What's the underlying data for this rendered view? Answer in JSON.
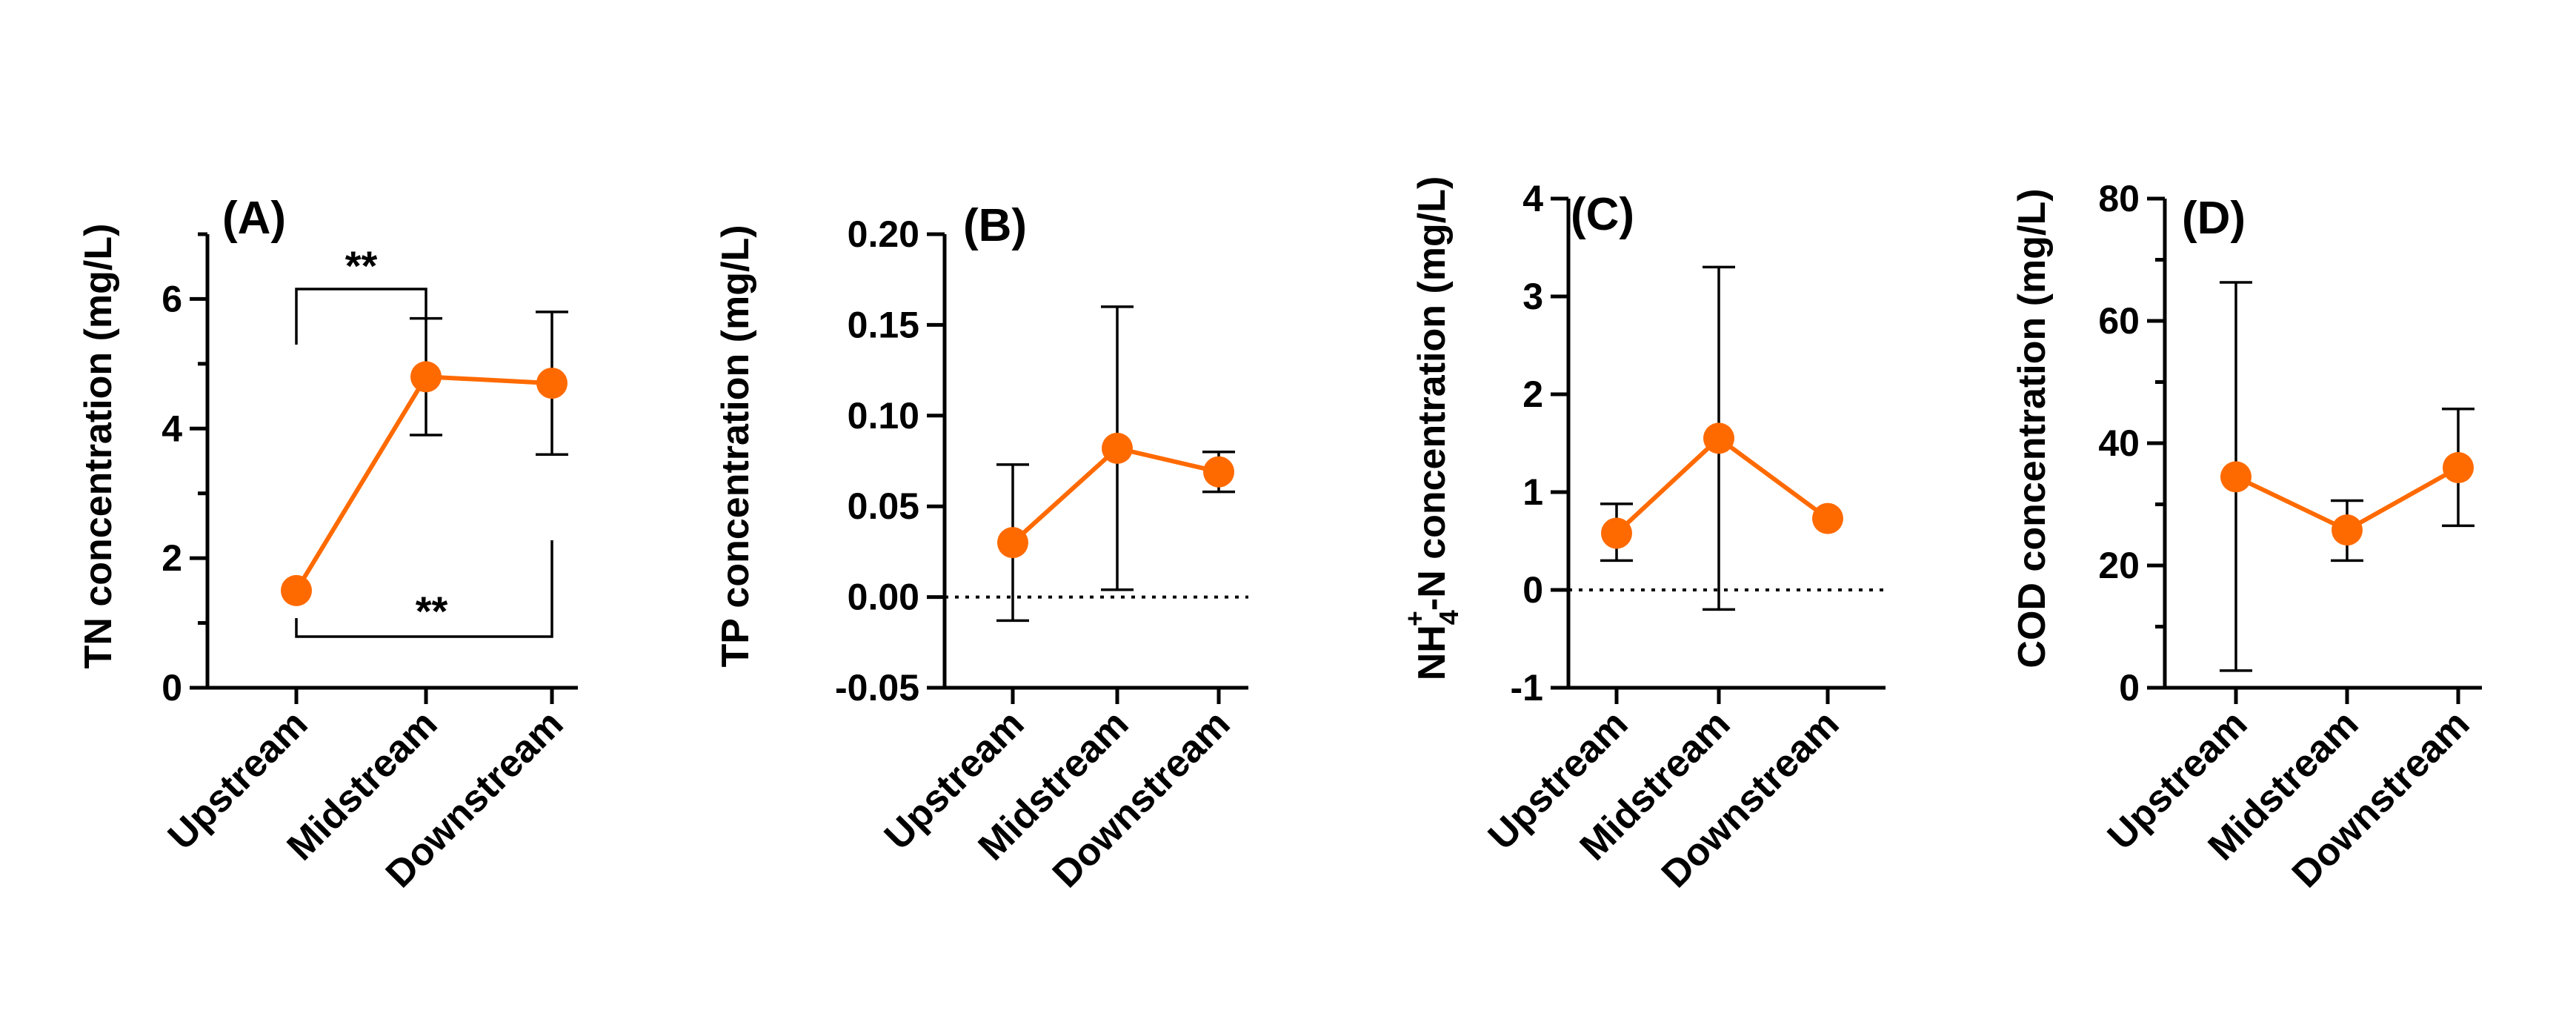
{
  "chart_data": [
    {
      "type": "line",
      "panel_label": "(A)",
      "ylabel": "TN concentration (mg/L)",
      "categories": [
        "Upstream",
        "Midstream",
        "Downstream"
      ],
      "series": [
        {
          "values": [
            1.5,
            4.8,
            4.7
          ],
          "error_low": [
            1.5,
            3.9,
            3.6
          ],
          "error_high": [
            1.5,
            5.7,
            5.8
          ],
          "color": "#FF6A00"
        }
      ],
      "ylim": [
        0,
        7
      ],
      "yticks": [
        0,
        2,
        4,
        6
      ],
      "yminor": [
        1,
        3,
        5,
        7
      ],
      "zero_line": false,
      "significance": [
        {
          "from": 0,
          "to": 1,
          "label": "**",
          "position": "top"
        },
        {
          "from": 0,
          "to": 2,
          "label": "**",
          "position": "bottom"
        }
      ]
    },
    {
      "type": "line",
      "panel_label": "(B)",
      "ylabel": "TP concentration (mg/L)",
      "categories": [
        "Upstream",
        "Midstream",
        "Downstream"
      ],
      "series": [
        {
          "values": [
            0.03,
            0.082,
            0.069
          ],
          "error_low": [
            -0.013,
            0.004,
            0.058
          ],
          "error_high": [
            0.073,
            0.16,
            0.08
          ],
          "color": "#FF6A00"
        }
      ],
      "ylim": [
        -0.05,
        0.2
      ],
      "yticks": [
        -0.05,
        0.0,
        0.05,
        0.1,
        0.15,
        0.2
      ],
      "ytick_labels": [
        "-0.05",
        "0.00",
        "0.05",
        "0.10",
        "0.15",
        "0.20"
      ],
      "zero_line": true
    },
    {
      "type": "line",
      "panel_label": "(C)",
      "ylabel_parts": [
        "NH",
        "4",
        "+",
        "-N concentration (mg/L)"
      ],
      "categories": [
        "Upstream",
        "Midstream",
        "Downstream"
      ],
      "series": [
        {
          "values": [
            0.58,
            1.55,
            0.73
          ],
          "error_low": [
            0.3,
            -0.2,
            0.73
          ],
          "error_high": [
            0.88,
            3.3,
            0.73
          ],
          "color": "#FF6A00"
        }
      ],
      "ylim": [
        -1,
        4
      ],
      "yticks": [
        -1,
        0,
        1,
        2,
        3,
        4
      ],
      "zero_line": true
    },
    {
      "type": "line",
      "panel_label": "(D)",
      "ylabel": "COD concentration (mg/L)",
      "categories": [
        "Upstream",
        "Midstream",
        "Downstream"
      ],
      "series": [
        {
          "values": [
            34.5,
            25.8,
            36
          ],
          "error_low": [
            2.8,
            20.8,
            26.5
          ],
          "error_high": [
            66.3,
            30.6,
            45.6
          ],
          "color": "#FF6A00"
        }
      ],
      "ylim": [
        0,
        80
      ],
      "yticks": [
        0,
        20,
        40,
        60,
        80
      ],
      "yminor": [
        10,
        30,
        50,
        70
      ],
      "zero_line": false
    }
  ]
}
